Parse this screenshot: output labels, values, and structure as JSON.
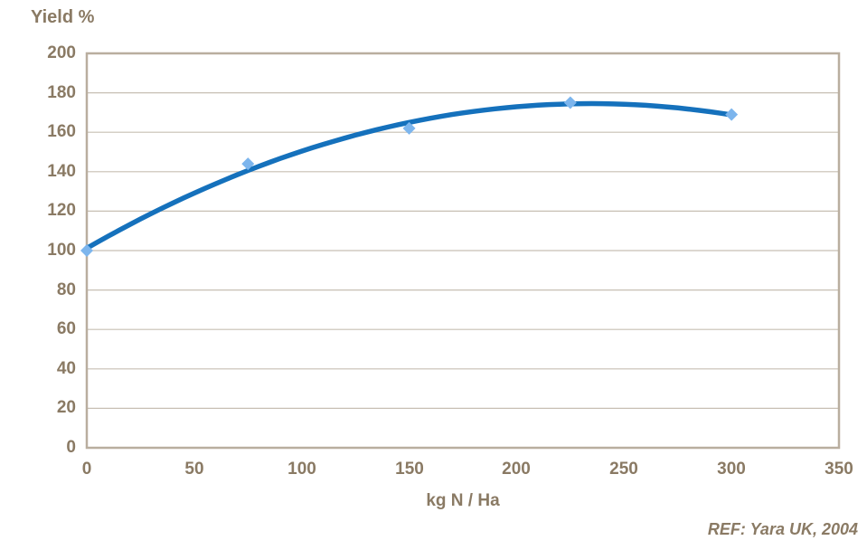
{
  "title": "Yield %",
  "xlabel": "kg N / Ha",
  "ref_note": "REF: Yara UK, 2004",
  "colors": {
    "text": "#8A7A64",
    "gridline": "#C7BFB3",
    "plot_border": "#B9AE9F",
    "trendline": "#1571BC",
    "marker": "#7CB5ED",
    "background": "#FFFFFF"
  },
  "chart_data": {
    "type": "scatter",
    "title": "Yield %",
    "xlabel": "kg N / Ha",
    "ylabel": "",
    "x": [
      0,
      75,
      150,
      225,
      300
    ],
    "y": [
      100,
      144,
      162,
      175,
      169
    ],
    "marker_shape": "diamond",
    "trendline": {
      "type": "quadratic",
      "a": 101.2,
      "b": 0.62533,
      "c": -0.0013333,
      "x_start": 0,
      "x_end": 300
    },
    "xlim": [
      0,
      350
    ],
    "ylim": [
      0,
      200
    ],
    "x_ticks": [
      0,
      50,
      100,
      150,
      200,
      250,
      300,
      350
    ],
    "y_ticks": [
      0,
      20,
      40,
      60,
      80,
      100,
      120,
      140,
      160,
      180,
      200
    ],
    "grid": "horizontal-only",
    "legend": "none",
    "annotation": "REF: Yara UK, 2004"
  }
}
